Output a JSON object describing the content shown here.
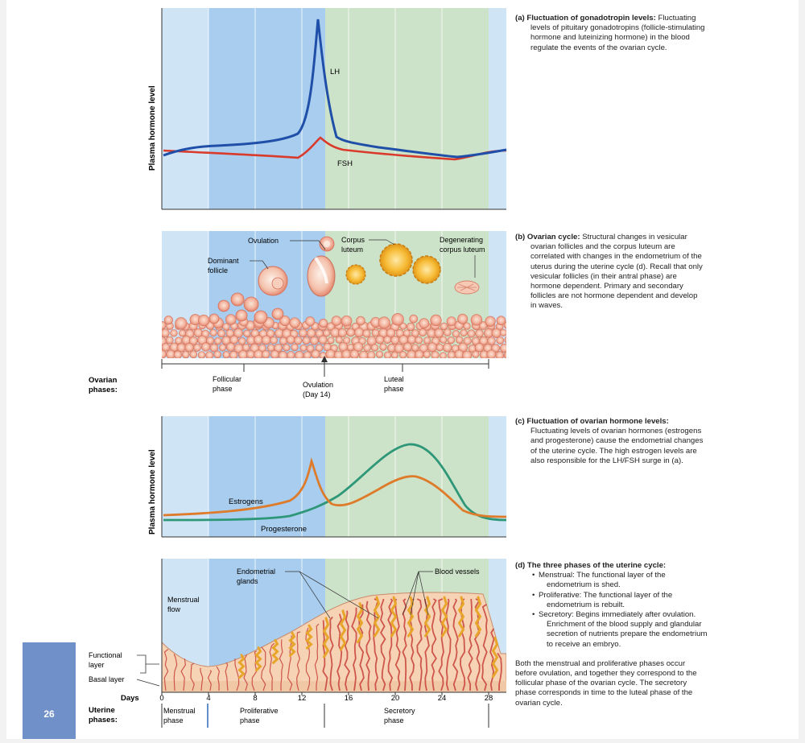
{
  "panel_a": {
    "y_label": "Plasma hormone level",
    "lh_label": "LH",
    "fsh_label": "FSH",
    "desc_title": "(a) Fluctuation of gonadotropin levels:",
    "desc_lines": [
      "Fluctuating",
      "levels of pituitary gonadotropins (follicle-stimulating",
      "hormone and luteinizing hormone) in the blood",
      "regulate the events of the ovarian cycle."
    ]
  },
  "panel_b": {
    "labels": {
      "ovulation": "Ovulation",
      "corpus_luteum_1": "Corpus",
      "corpus_luteum_2": "luteum",
      "degenerating_1": "Degenerating",
      "degenerating_2": "corpus luteum",
      "dominant_1": "Dominant",
      "dominant_2": "follicle"
    },
    "phases_title_1": "Ovarian",
    "phases_title_2": "phases:",
    "follicular_1": "Follicular",
    "follicular_2": "phase",
    "ovulation_day_1": "Ovulation",
    "ovulation_day_2": "(Day 14)",
    "luteal_1": "Luteal",
    "luteal_2": "phase",
    "desc_title": "(b) Ovarian cycle:",
    "desc_lines": [
      "Structural changes in vesicular",
      "ovarian follicles and the corpus luteum are",
      "correlated with changes in the endometrium of the",
      "uterus during the uterine cycle (d). Recall that only",
      "vesicular follicles (in their antral phase) are",
      "hormone dependent. Primary and secondary",
      "follicles are not hormone dependent and develop",
      "in waves."
    ]
  },
  "panel_c": {
    "y_label": "Plasma hormone level",
    "estrogens_label": "Estrogens",
    "progesterone_label": "Progesterone",
    "desc_title": "(c) Fluctuation of ovarian hormone levels:",
    "desc_lines": [
      "Fluctuating levels of ovarian hormones (estrogens",
      "and progesterone) cause the endometrial changes",
      "of the uterine cycle. The high estrogen levels are",
      "also responsible for the LH/FSH surge in (a)."
    ]
  },
  "panel_d": {
    "labels": {
      "glands_1": "Endometrial",
      "glands_2": "glands",
      "vessels": "Blood vessels",
      "flow_1": "Menstrual",
      "flow_2": "flow",
      "functional_1": "Functional",
      "functional_2": "layer",
      "basal": "Basal layer"
    },
    "days_label": "Days",
    "day_ticks": [
      "0",
      "4",
      "8",
      "12",
      "16",
      "20",
      "24",
      "28"
    ],
    "uterine_1": "Uterine",
    "uterine_2": "phases:",
    "menstrual_1": "Menstrual",
    "menstrual_2": "phase",
    "proliferative_1": "Proliferative",
    "proliferative_2": "phase",
    "secretory_1": "Secretory",
    "secretory_2": "phase",
    "desc_title": "(d) The three phases of the uterine cycle:",
    "bullets": [
      [
        "Menstrual: The functional layer of the",
        "endometrium is shed."
      ],
      [
        "Proliferative: The functional layer of the",
        "endometrium is rebuilt."
      ],
      [
        "Secretory: Begins immediately after ovulation.",
        "Enrichment of the blood supply and glandular",
        "secretion of nutrients prepare the endometrium",
        "to receive an embryo."
      ]
    ],
    "summary_lines": [
      "Both the menstrual and proliferative phases occur",
      "before ovulation, and together they correspond to the",
      "follicular phase of the ovarian cycle. The secretory",
      "phase corresponds in time to the luteal phase of the",
      "ovarian cycle."
    ]
  },
  "page_number": "26",
  "colors": {
    "light_blue": "#cfe5f6",
    "mid_blue": "#a8cdee",
    "light_green": "#cde3c9",
    "lh": "#1f4fa8",
    "fsh": "#d93a2b",
    "estrogen": "#de7b2a",
    "progesterone": "#2e9778",
    "tissue": "#f5d3b4",
    "follicle": "#e88a6e",
    "corpus": "#f0b02a"
  }
}
